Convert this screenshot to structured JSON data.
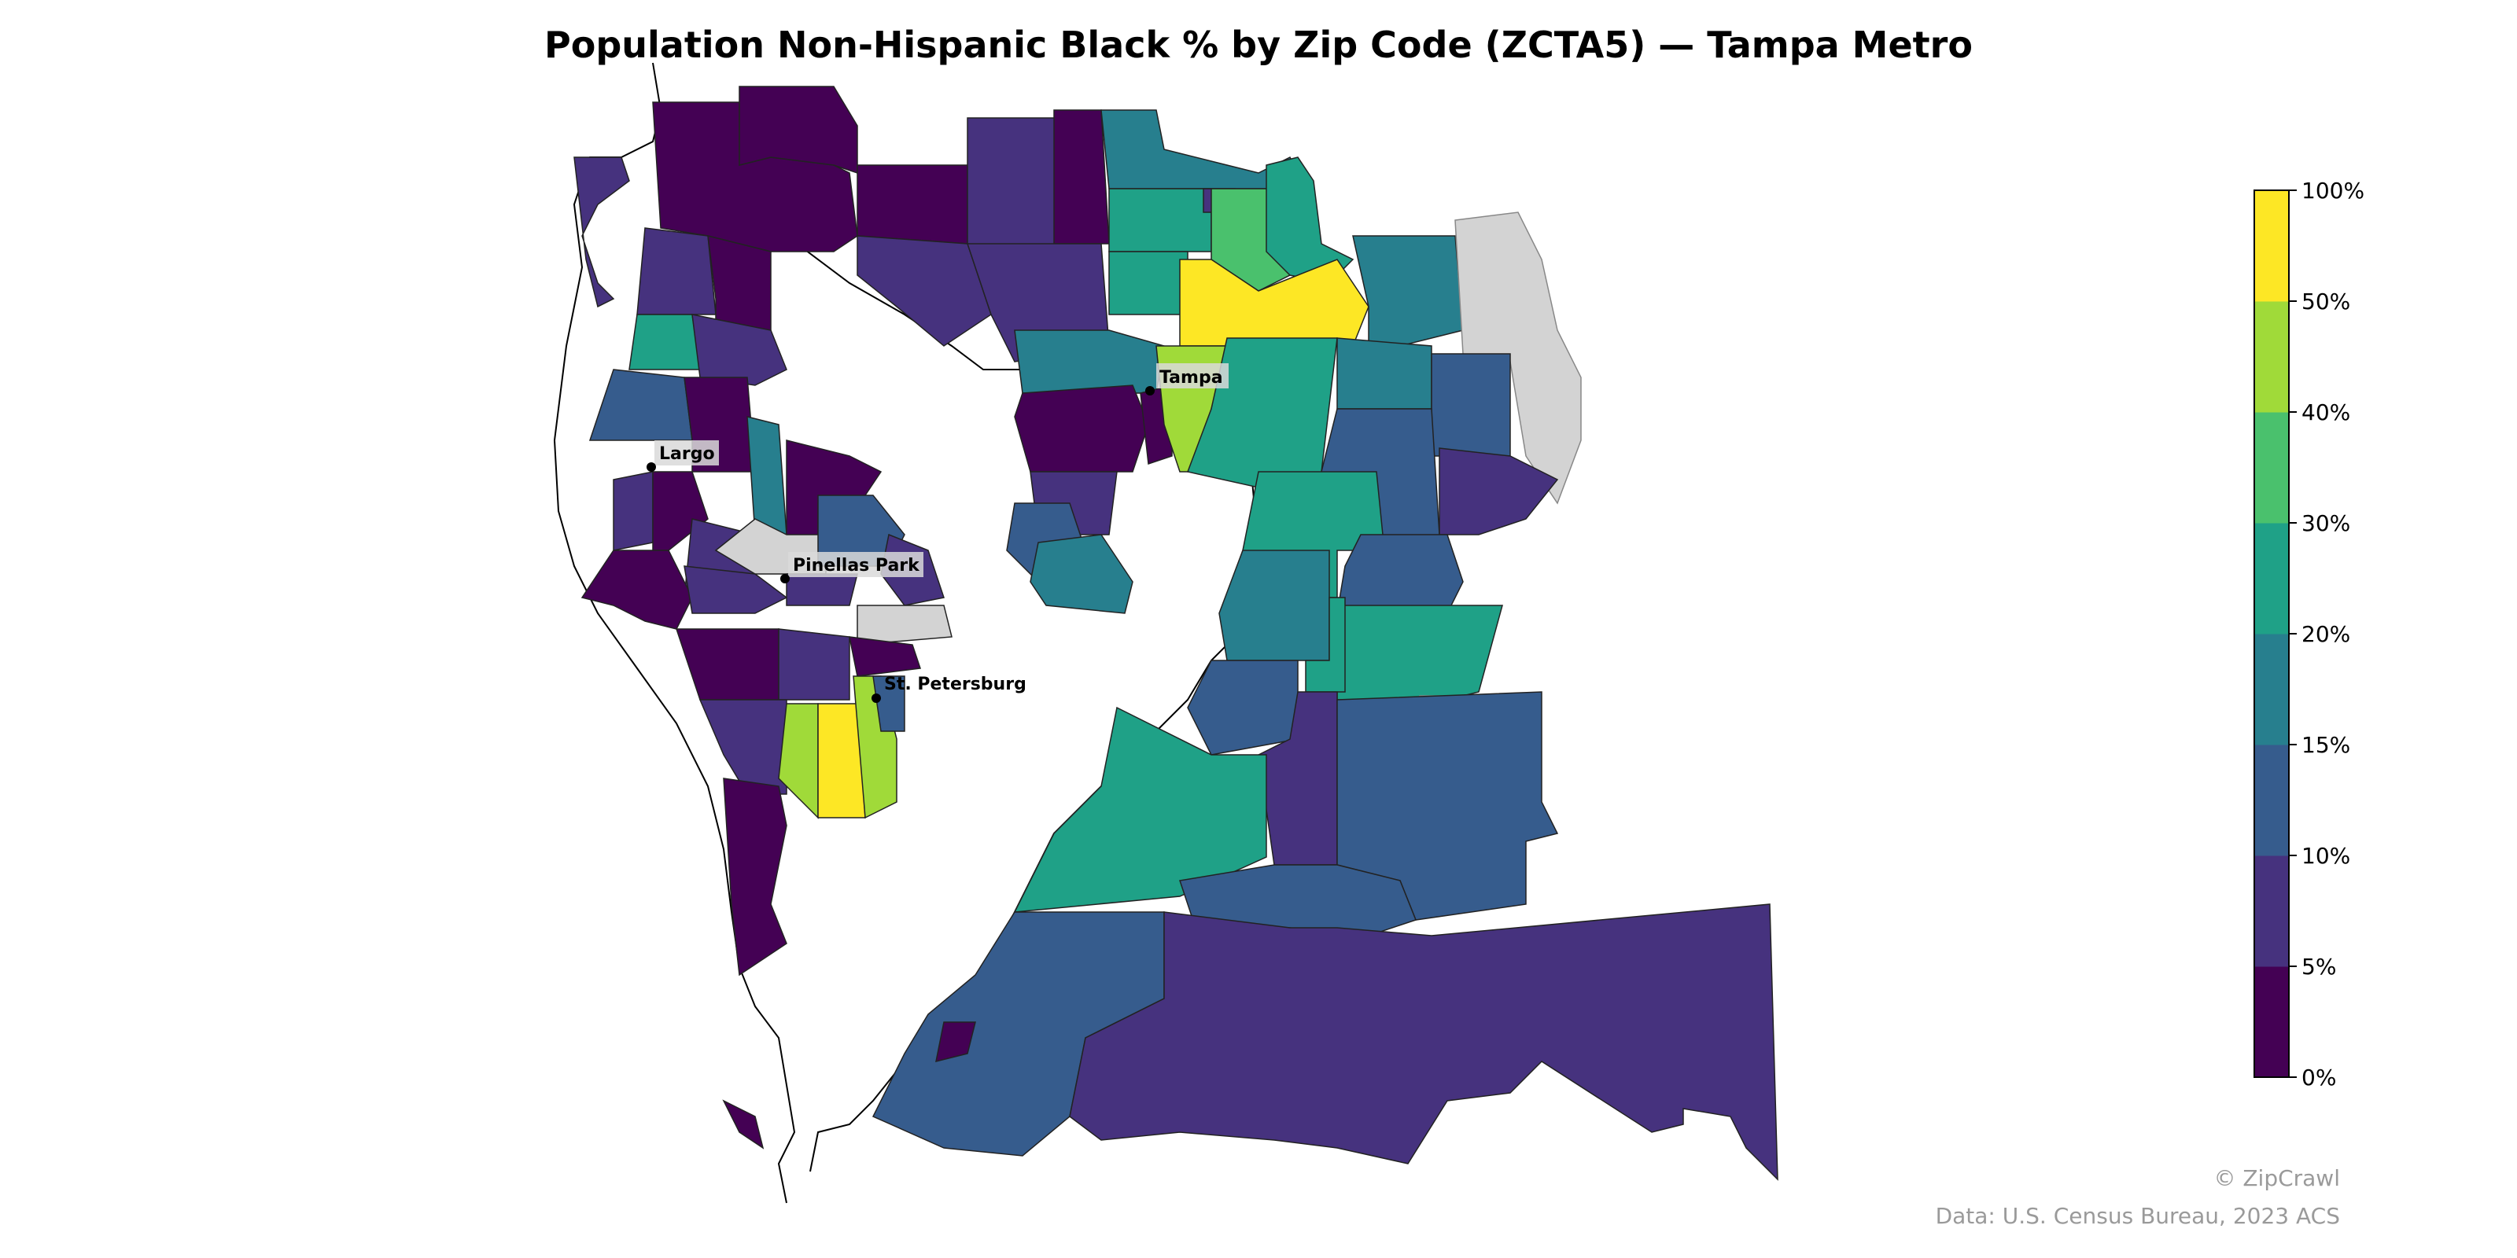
{
  "title": "Population Non-Hispanic Black % by Zip Code (ZCTA5) — Tampa Metro",
  "cities": [
    {
      "name": "Tampa"
    },
    {
      "name": "Largo"
    },
    {
      "name": "Pinellas Park"
    },
    {
      "name": "St. Petersburg"
    }
  ],
  "legend": {
    "ticks": [
      "0%",
      "5%",
      "10%",
      "15%",
      "20%",
      "30%",
      "40%",
      "50%",
      "100%"
    ],
    "colors": [
      "#440154",
      "#46327e",
      "#365c8d",
      "#277f8e",
      "#1fa187",
      "#4ac16d",
      "#a0da39",
      "#fde725"
    ],
    "no_data_color": "#d3d3d3"
  },
  "credits": {
    "brand": "© ZipCrawl",
    "source": "Data: U.S. Census Bureau, 2023 ACS"
  }
}
